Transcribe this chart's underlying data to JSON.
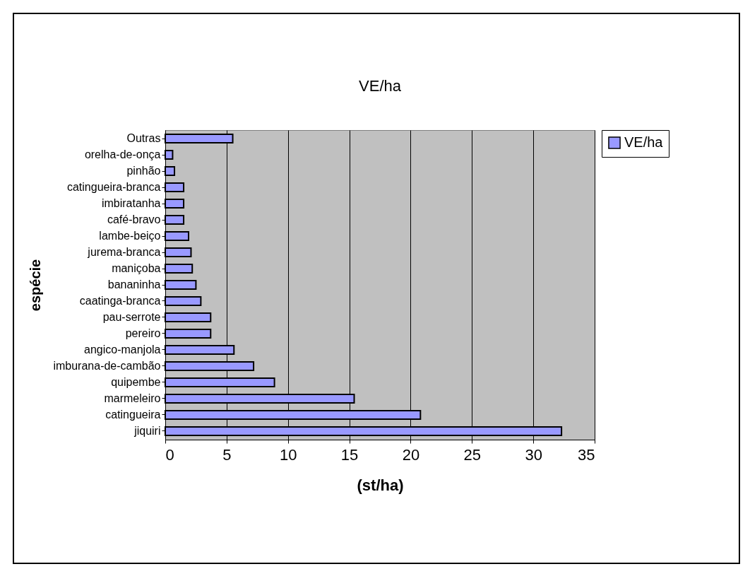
{
  "chart_data": {
    "type": "bar",
    "orientation": "horizontal",
    "title": "VE/ha",
    "xlabel": "(st/ha)",
    "ylabel": "espécie",
    "categories": [
      "Outras",
      "orelha-de-onça",
      "pinhão",
      "catingueira-branca",
      "imbiratanha",
      "café-bravo",
      "lambe-beiço",
      "jurema-branca",
      "maniçoba",
      "bananinha",
      "caatinga-branca",
      "pau-serrote",
      "pereiro",
      "angico-manjola",
      "imburana-de-cambão",
      "quipembe",
      "marmeleiro",
      "catingueira",
      "jiquiri"
    ],
    "series": [
      {
        "name": "VE/ha",
        "color": "#9999ff",
        "values": [
          5.5,
          0.6,
          0.75,
          1.5,
          1.5,
          1.5,
          1.9,
          2.1,
          2.2,
          2.5,
          2.9,
          3.7,
          3.7,
          5.6,
          7.2,
          8.9,
          15.4,
          20.8,
          32.3
        ]
      }
    ],
    "xlim": [
      0,
      35
    ],
    "xticks": [
      0,
      5,
      10,
      15,
      20,
      25,
      30,
      35
    ],
    "grid": "x",
    "legend": "right"
  }
}
